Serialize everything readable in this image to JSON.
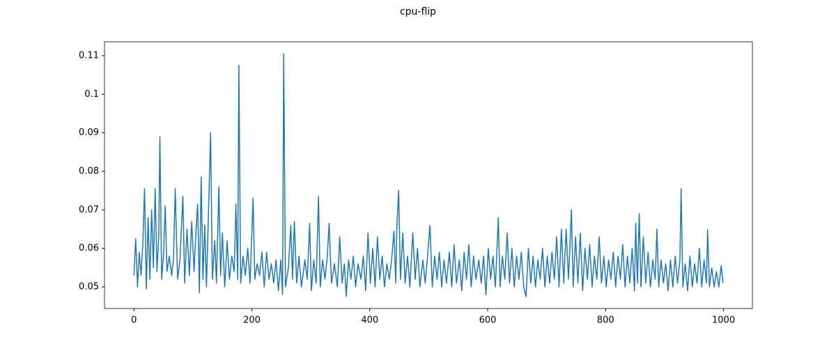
{
  "chart_data": {
    "type": "line",
    "title": "cpu-flip",
    "color": "#1f77b4",
    "x": [
      0,
      3,
      6,
      9,
      12,
      15,
      18,
      21,
      24,
      27,
      30,
      33,
      36,
      39,
      42,
      44,
      47,
      50,
      53,
      56,
      60,
      64,
      67,
      70,
      74,
      78,
      83,
      86,
      90,
      94,
      98,
      102,
      105,
      108,
      111,
      114,
      117,
      120,
      123,
      126,
      130,
      133,
      137,
      140,
      144,
      147,
      150,
      154,
      158,
      162,
      166,
      170,
      173,
      176,
      178,
      181,
      185,
      189,
      193,
      197,
      202,
      205,
      209,
      213,
      217,
      221,
      225,
      229,
      233,
      237,
      241,
      245,
      249,
      252,
      254,
      257,
      262,
      266,
      269,
      272,
      276,
      280,
      284,
      290,
      294,
      298,
      301,
      305,
      309,
      313,
      316,
      320,
      324,
      328,
      331,
      335,
      340,
      345,
      349,
      353,
      357,
      360,
      364,
      368,
      372,
      376,
      380,
      385,
      389,
      393,
      397,
      401,
      405,
      409,
      413,
      417,
      421,
      425,
      429,
      433,
      437,
      441,
      444,
      446,
      449,
      452,
      456,
      460,
      464,
      468,
      473,
      477,
      481,
      485,
      490,
      494,
      498,
      502,
      506,
      510,
      514,
      518,
      522,
      526,
      530,
      535,
      539,
      543,
      547,
      552,
      556,
      560,
      564,
      568,
      572,
      576,
      580,
      585,
      589,
      593,
      597,
      601,
      605,
      609,
      613,
      618,
      621,
      625,
      629,
      633,
      637,
      641,
      645,
      649,
      653,
      657,
      661,
      665,
      669,
      673,
      677,
      681,
      685,
      689,
      693,
      697,
      701,
      705,
      709,
      713,
      717,
      721,
      725,
      729,
      733,
      737,
      742,
      745,
      749,
      753,
      757,
      761,
      765,
      769,
      773,
      777,
      781,
      785,
      789,
      793,
      797,
      801,
      805,
      809,
      813,
      817,
      821,
      825,
      829,
      833,
      837,
      841,
      845,
      849,
      851,
      854,
      857,
      860,
      864,
      868,
      872,
      876,
      880,
      884,
      887,
      890,
      894,
      898,
      902,
      906,
      910,
      914,
      918,
      922,
      926,
      928,
      931,
      935,
      939,
      943,
      947,
      951,
      955,
      959,
      963,
      967,
      971,
      973,
      976,
      980,
      984,
      988,
      992,
      996,
      999
    ],
    "values": [
      0.053,
      0.0625,
      0.05,
      0.059,
      0.053,
      0.061,
      0.0755,
      0.0495,
      0.068,
      0.052,
      0.07,
      0.055,
      0.0755,
      0.054,
      0.063,
      0.089,
      0.052,
      0.058,
      0.071,
      0.054,
      0.058,
      0.053,
      0.057,
      0.0755,
      0.052,
      0.057,
      0.0735,
      0.051,
      0.065,
      0.053,
      0.067,
      0.054,
      0.064,
      0.0715,
      0.0485,
      0.0785,
      0.052,
      0.066,
      0.05,
      0.067,
      0.09,
      0.052,
      0.062,
      0.051,
      0.076,
      0.053,
      0.064,
      0.05,
      0.062,
      0.052,
      0.058,
      0.054,
      0.0715,
      0.052,
      0.1075,
      0.051,
      0.058,
      0.053,
      0.06,
      0.051,
      0.073,
      0.052,
      0.056,
      0.053,
      0.059,
      0.05,
      0.059,
      0.052,
      0.056,
      0.051,
      0.057,
      0.049,
      0.057,
      0.048,
      0.1105,
      0.05,
      0.055,
      0.066,
      0.052,
      0.067,
      0.051,
      0.058,
      0.05,
      0.057,
      0.052,
      0.0665,
      0.049,
      0.057,
      0.051,
      0.0735,
      0.05,
      0.057,
      0.052,
      0.058,
      0.0665,
      0.051,
      0.056,
      0.05,
      0.063,
      0.051,
      0.056,
      0.0475,
      0.057,
      0.052,
      0.058,
      0.05,
      0.056,
      0.052,
      0.058,
      0.049,
      0.064,
      0.051,
      0.06,
      0.05,
      0.063,
      0.052,
      0.058,
      0.05,
      0.056,
      0.052,
      0.057,
      0.0645,
      0.051,
      0.066,
      0.075,
      0.052,
      0.064,
      0.051,
      0.058,
      0.05,
      0.064,
      0.052,
      0.06,
      0.05,
      0.057,
      0.051,
      0.058,
      0.066,
      0.05,
      0.058,
      0.052,
      0.059,
      0.05,
      0.057,
      0.051,
      0.059,
      0.05,
      0.061,
      0.051,
      0.057,
      0.049,
      0.059,
      0.052,
      0.061,
      0.05,
      0.058,
      0.052,
      0.057,
      0.051,
      0.058,
      0.048,
      0.06,
      0.052,
      0.058,
      0.05,
      0.068,
      0.05,
      0.058,
      0.052,
      0.064,
      0.051,
      0.06,
      0.05,
      0.058,
      0.052,
      0.059,
      0.05,
      0.0475,
      0.06,
      0.051,
      0.058,
      0.05,
      0.057,
      0.052,
      0.06,
      0.05,
      0.058,
      0.051,
      0.059,
      0.052,
      0.063,
      0.05,
      0.065,
      0.051,
      0.065,
      0.052,
      0.07,
      0.05,
      0.063,
      0.051,
      0.064,
      0.049,
      0.06,
      0.052,
      0.061,
      0.05,
      0.058,
      0.052,
      0.063,
      0.051,
      0.058,
      0.05,
      0.057,
      0.052,
      0.059,
      0.05,
      0.058,
      0.052,
      0.061,
      0.05,
      0.058,
      0.051,
      0.06,
      0.049,
      0.0665,
      0.051,
      0.069,
      0.05,
      0.063,
      0.051,
      0.059,
      0.05,
      0.057,
      0.052,
      0.065,
      0.05,
      0.057,
      0.051,
      0.056,
      0.049,
      0.057,
      0.05,
      0.058,
      0.051,
      0.057,
      0.0755,
      0.05,
      0.056,
      0.049,
      0.058,
      0.05,
      0.056,
      0.051,
      0.06,
      0.05,
      0.057,
      0.051,
      0.0648,
      0.05,
      0.055,
      0.05,
      0.054,
      0.05,
      0.0555,
      0.051
    ],
    "xlim": [
      -49.95,
      1048.95
    ],
    "xticks": [
      0,
      200,
      400,
      600,
      800,
      1000
    ],
    "ylim": [
      0.0444,
      0.1136
    ],
    "yticks": [
      0.05,
      0.06,
      0.07,
      0.08,
      0.09,
      0.1,
      0.11
    ]
  }
}
